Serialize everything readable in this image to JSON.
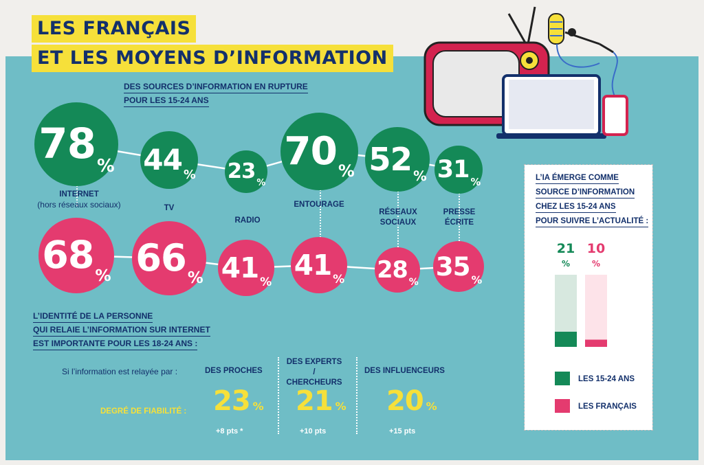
{
  "title": {
    "line1": "LES FRANÇAIS",
    "line2": "ET LES MOYENS D’INFORMATION"
  },
  "sources_section": {
    "title_line1": "DES SOURCES D’INFORMATION EN RUPTURE",
    "title_line2": "POUR LES 15-24 ANS"
  },
  "chart_data": [
    {
      "type": "line",
      "title": "DES SOURCES D’INFORMATION EN RUPTURE POUR LES 15-24 ANS",
      "categories": [
        "INTERNET (hors réseaux sociaux)",
        "TV",
        "RADIO",
        "ENTOURAGE",
        "RÉSEAUX SOCIAUX",
        "PRESSE ÉCRITE"
      ],
      "series": [
        {
          "values": [
            78,
            44,
            23,
            70,
            52,
            31
          ],
          "color": "#148957"
        },
        {
          "values": [
            68,
            66,
            41,
            41,
            28,
            35
          ],
          "color": "#e43b6f"
        }
      ],
      "unit": "%"
    },
    {
      "type": "bar",
      "title": "L’IA ÉMERGE COMME SOURCE D’INFORMATION CHEZ LES 15-24 ANS POUR SUIVRE L’ACTUALITÉ :",
      "categories": [
        "LES 15-24 ANS",
        "LES FRANÇAIS"
      ],
      "values": [
        21,
        10
      ],
      "unit": "%",
      "ylim": [
        0,
        100
      ],
      "colors": [
        "#148957",
        "#e43b6f"
      ]
    }
  ],
  "categories_labels": [
    {
      "main": "INTERNET",
      "sub": "(hors réseaux sociaux)"
    },
    {
      "main": "TV",
      "sub": ""
    },
    {
      "main": "RADIO",
      "sub": ""
    },
    {
      "main": "ENTOURAGE",
      "sub": ""
    },
    {
      "main": "RÉSEAUX",
      "sub": "SOCIAUX"
    },
    {
      "main": "PRESSE",
      "sub": "ÉCRITE"
    }
  ],
  "pct_symbol": "%",
  "identity_section": {
    "title_line1": "L’IDENTITÉ DE LA PERSONNE",
    "title_line2": "QUI RELAIE L’INFORMATION SUR INTERNET",
    "title_line3": "EST IMPORTANTE POUR LES 18-24 ANS :",
    "relayed_by_label": "Si l’information est relayée par :",
    "reliability_label": "DEGRÉ DE FIABILITÉ :",
    "columns": [
      {
        "header_line1": "DES PROCHES",
        "header_line2": "",
        "value": "23",
        "delta": "+8 pts *"
      },
      {
        "header_line1": "DES EXPERTS /",
        "header_line2": "CHERCHEURS",
        "value": "21",
        "delta": "+10 pts"
      },
      {
        "header_line1": "DES INFLUENCEURS",
        "header_line2": "",
        "value": "20",
        "delta": "+15 pts"
      }
    ]
  },
  "ai_box": {
    "title_line1": "L’IA ÉMERGE COMME",
    "title_line2": "SOURCE D’INFORMATION",
    "title_line3": "CHEZ LES 15-24 ANS",
    "title_line4": "POUR SUIVRE L’ACTUALITÉ :",
    "legend": [
      "LES 15-24 ANS",
      "LES FRANÇAIS"
    ]
  },
  "colors": {
    "green": "#148957",
    "pink": "#e43b6f",
    "navy": "#13306b",
    "yellow": "#f6e03a",
    "teal": "#6fbdc6"
  },
  "illustration": [
    "tv-icon",
    "laptop-icon",
    "microphone-icon",
    "phone-icon"
  ]
}
